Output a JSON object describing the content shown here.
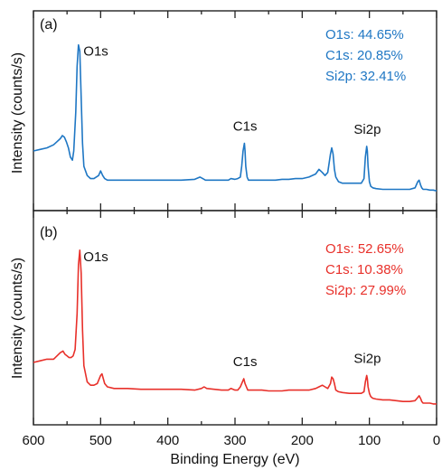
{
  "chart_data": {
    "type": "line",
    "xlabel": "Binding Energy (eV)",
    "xlim": [
      600,
      0
    ],
    "x_ticks": [
      "600",
      "500",
      "400",
      "300",
      "200",
      "100",
      "0"
    ],
    "panels": [
      {
        "panel_label": "(a)",
        "ylabel": "Intensity (counts/s)",
        "color": "#1f77c4",
        "peak_labels": [
          {
            "text": "O1s",
            "x": 531
          },
          {
            "text": "C1s",
            "x": 285
          },
          {
            "text": "Si2p",
            "x": 103
          }
        ],
        "composition": [
          "O1s: 44.65%",
          "C1s: 20.85%",
          "Si2p: 32.41%"
        ],
        "series": [
          {
            "x": [
              600,
              590,
              580,
              570,
              565,
              560,
              557,
              554,
              551,
              548,
              545,
              542,
              540,
              537,
              535,
              533,
              531,
              529,
              527,
              525,
              520,
              515,
              510,
              503,
              500,
              497,
              494,
              490,
              480,
              460,
              440,
              420,
              400,
              380,
              360,
              352,
              348,
              344,
              340,
              320,
              310,
              306,
              300,
              296,
              292,
              290,
              288,
              286,
              285,
              284,
              282,
              280,
              276,
              270,
              260,
              250,
              240,
              230,
              220,
              210,
              200,
              190,
              180,
              175,
              170,
              166,
              162,
              158,
              156,
              154,
              152,
              150,
              146,
              140,
              130,
              120,
              112,
              108,
              106,
              104,
              103,
              102,
              100,
              98,
              95,
              90,
              80,
              70,
              60,
              50,
              40,
              32,
              28,
              26,
              24,
              22,
              20,
              15,
              10,
              5,
              0
            ],
            "y": [
              0.3,
              0.31,
              0.32,
              0.34,
              0.36,
              0.38,
              0.4,
              0.39,
              0.36,
              0.32,
              0.26,
              0.24,
              0.3,
              0.55,
              0.85,
              0.99,
              0.95,
              0.65,
              0.35,
              0.2,
              0.14,
              0.12,
              0.12,
              0.14,
              0.17,
              0.14,
              0.12,
              0.11,
              0.11,
              0.11,
              0.11,
              0.11,
              0.11,
              0.11,
              0.115,
              0.13,
              0.12,
              0.11,
              0.11,
              0.11,
              0.11,
              0.12,
              0.115,
              0.12,
              0.13,
              0.2,
              0.3,
              0.35,
              0.3,
              0.2,
              0.13,
              0.11,
              0.11,
              0.11,
              0.11,
              0.11,
              0.11,
              0.115,
              0.115,
              0.12,
              0.12,
              0.13,
              0.15,
              0.18,
              0.16,
              0.14,
              0.16,
              0.28,
              0.32,
              0.28,
              0.18,
              0.13,
              0.1,
              0.09,
              0.09,
              0.09,
              0.09,
              0.12,
              0.26,
              0.33,
              0.3,
              0.2,
              0.1,
              0.07,
              0.06,
              0.055,
              0.05,
              0.05,
              0.05,
              0.05,
              0.05,
              0.06,
              0.1,
              0.11,
              0.08,
              0.06,
              0.05,
              0.05,
              0.045,
              0.045,
              0.04
            ]
          }
        ]
      },
      {
        "panel_label": "(b)",
        "ylabel": "Intensity (counts/s)",
        "color": "#e8302a",
        "peak_labels": [
          {
            "text": "O1s",
            "x": 531
          },
          {
            "text": "C1s",
            "x": 285
          },
          {
            "text": "Si2p",
            "x": 103
          }
        ],
        "composition": [
          "O1s: 52.65%",
          "C1s: 10.38%",
          "Si2p: 27.99%"
        ],
        "series": [
          {
            "x": [
              600,
              590,
              580,
              570,
              565,
              560,
              556,
              553,
              550,
              547,
              544,
              541,
              538,
              535,
              533,
              531,
              529,
              527,
              525,
              520,
              515,
              510,
              505,
              500,
              498,
              496,
              494,
              490,
              480,
              460,
              440,
              420,
              400,
              380,
              360,
              350,
              346,
              342,
              320,
              310,
              306,
              300,
              296,
              292,
              289,
              287,
              285,
              283,
              281,
              278,
              270,
              260,
              250,
              240,
              230,
              220,
              210,
              200,
              190,
              180,
              175,
              170,
              166,
              162,
              158,
              156,
              154,
              152,
              150,
              146,
              140,
              130,
              120,
              112,
              108,
              106,
              104,
              103,
              102,
              100,
              98,
              95,
              90,
              80,
              70,
              60,
              50,
              40,
              32,
              28,
              26,
              24,
              22,
              20,
              15,
              10,
              5,
              0
            ],
            "y": [
              0.3,
              0.31,
              0.32,
              0.32,
              0.34,
              0.36,
              0.37,
              0.35,
              0.34,
              0.33,
              0.33,
              0.34,
              0.38,
              0.6,
              0.9,
              0.99,
              0.85,
              0.5,
              0.28,
              0.18,
              0.16,
              0.16,
              0.17,
              0.22,
              0.23,
              0.2,
              0.17,
              0.15,
              0.14,
              0.14,
              0.135,
              0.135,
              0.135,
              0.135,
              0.13,
              0.14,
              0.15,
              0.14,
              0.13,
              0.13,
              0.14,
              0.13,
              0.13,
              0.15,
              0.18,
              0.2,
              0.17,
              0.15,
              0.13,
              0.13,
              0.13,
              0.13,
              0.125,
              0.125,
              0.125,
              0.13,
              0.13,
              0.13,
              0.13,
              0.14,
              0.15,
              0.16,
              0.15,
              0.14,
              0.17,
              0.21,
              0.2,
              0.17,
              0.13,
              0.12,
              0.115,
              0.11,
              0.11,
              0.11,
              0.12,
              0.18,
              0.22,
              0.2,
              0.15,
              0.11,
              0.09,
              0.08,
              0.075,
              0.07,
              0.07,
              0.065,
              0.06,
              0.06,
              0.065,
              0.085,
              0.095,
              0.08,
              0.06,
              0.05,
              0.05,
              0.05,
              0.045,
              0.045
            ]
          }
        ]
      }
    ]
  }
}
